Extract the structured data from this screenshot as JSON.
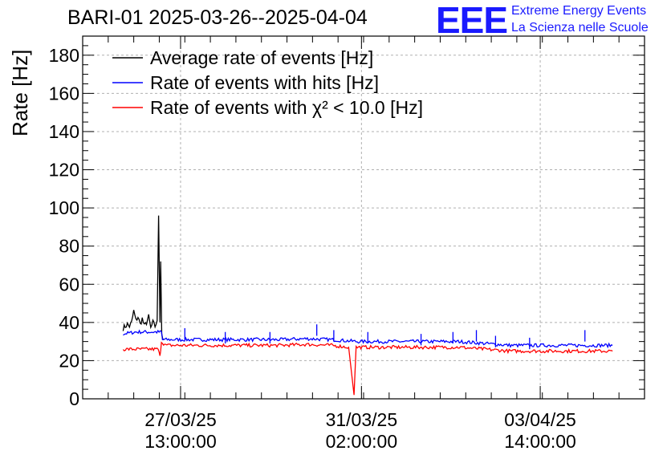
{
  "header": {
    "title": "BARI-01 2025-03-26--2025-04-04",
    "logo_mark": "EEE",
    "logo_line1": "Extreme Energy Events",
    "logo_line2": "La Scienza nelle Scuole"
  },
  "chart_data": {
    "type": "line",
    "title": "BARI-01 2025-03-26--2025-04-04",
    "xlabel": "",
    "ylabel": "Rate [Hz]",
    "ylim": [
      0,
      190
    ],
    "yticks": [
      0,
      20,
      40,
      60,
      80,
      100,
      120,
      140,
      160,
      180
    ],
    "xlim": [
      "2025-03-25 15:00",
      "2025-04-05 15:00"
    ],
    "xticks": [
      {
        "time": "2025-03-27 13:00",
        "label_date": "27/03/25",
        "label_time": "13:00:00"
      },
      {
        "time": "2025-03-31 02:00",
        "label_date": "31/03/25",
        "label_time": "02:00:00"
      },
      {
        "time": "2025-04-03 14:00",
        "label_date": "03/04/25",
        "label_time": "14:00:00"
      }
    ],
    "grid": true,
    "legend_position": "top-left",
    "series": [
      {
        "name": "Average rate of events [Hz]",
        "color": "#000000",
        "points": [
          [
            "2025-03-26 10:00",
            37
          ],
          [
            "2025-03-26 11:00",
            38
          ],
          [
            "2025-03-26 12:00",
            39
          ],
          [
            "2025-03-26 13:00",
            38
          ],
          [
            "2025-03-26 14:00",
            40
          ],
          [
            "2025-03-26 15:00",
            46
          ],
          [
            "2025-03-26 16:00",
            41
          ],
          [
            "2025-03-26 17:00",
            43
          ],
          [
            "2025-03-26 18:00",
            39
          ],
          [
            "2025-03-26 19:00",
            42
          ],
          [
            "2025-03-26 20:00",
            38
          ],
          [
            "2025-03-26 21:00",
            40
          ],
          [
            "2025-03-26 22:00",
            43
          ],
          [
            "2025-03-26 23:00",
            37
          ],
          [
            "2025-03-27 00:00",
            40
          ],
          [
            "2025-03-27 01:00",
            38
          ],
          [
            "2025-03-27 02:00",
            41
          ],
          [
            "2025-03-27 02:40",
            96
          ],
          [
            "2025-03-27 03:20",
            40
          ],
          [
            "2025-03-27 03:40",
            72
          ],
          [
            "2025-03-27 04:10",
            33
          ],
          [
            "2025-03-27 05:00",
            31
          ]
        ]
      },
      {
        "name": "Rate of events with hits [Hz]",
        "color": "#0000ff",
        "points": [
          [
            "2025-03-26 10:00",
            34
          ],
          [
            "2025-03-26 16:00",
            35
          ],
          [
            "2025-03-26 22:00",
            35
          ],
          [
            "2025-03-27 04:00",
            35
          ],
          [
            "2025-03-27 04:30",
            31
          ],
          [
            "2025-03-27 12:00",
            31
          ],
          [
            "2025-03-28 00:00",
            31
          ],
          [
            "2025-03-28 12:00",
            31
          ],
          [
            "2025-03-29 00:00",
            31
          ],
          [
            "2025-03-29 12:00",
            31
          ],
          [
            "2025-03-30 00:00",
            31.5
          ],
          [
            "2025-03-30 12:00",
            31
          ],
          [
            "2025-03-31 00:00",
            30
          ],
          [
            "2025-03-31 12:00",
            30
          ],
          [
            "2025-04-01 00:00",
            30
          ],
          [
            "2025-04-01 12:00",
            30
          ],
          [
            "2025-04-02 00:00",
            30
          ],
          [
            "2025-04-02 12:00",
            29
          ],
          [
            "2025-04-03 00:00",
            28
          ],
          [
            "2025-04-03 12:00",
            28
          ],
          [
            "2025-04-04 00:00",
            28
          ],
          [
            "2025-04-04 12:00",
            28
          ],
          [
            "2025-04-05 00:00",
            28
          ]
        ],
        "spikes": [
          [
            "2025-03-27 15:00",
            37
          ],
          [
            "2025-03-28 10:00",
            35
          ],
          [
            "2025-03-29 07:00",
            35
          ],
          [
            "2025-03-30 05:00",
            39
          ],
          [
            "2025-03-30 13:00",
            36
          ],
          [
            "2025-03-31 05:00",
            35
          ],
          [
            "2025-04-01 06:00",
            34
          ],
          [
            "2025-04-01 21:00",
            35
          ],
          [
            "2025-04-02 08:00",
            36
          ],
          [
            "2025-04-02 17:00",
            33
          ],
          [
            "2025-04-03 09:00",
            32
          ],
          [
            "2025-04-04 11:00",
            36
          ]
        ]
      },
      {
        "name": "Rate of events with χ² < 10.0 [Hz]",
        "color": "#ff0000",
        "points": [
          [
            "2025-03-26 10:00",
            26
          ],
          [
            "2025-03-26 16:00",
            26
          ],
          [
            "2025-03-26 22:00",
            26
          ],
          [
            "2025-03-27 02:30",
            26
          ],
          [
            "2025-03-27 03:20",
            22
          ],
          [
            "2025-03-27 04:00",
            30
          ],
          [
            "2025-03-27 06:00",
            28
          ],
          [
            "2025-03-27 12:00",
            28
          ],
          [
            "2025-03-28 00:00",
            28
          ],
          [
            "2025-03-28 12:00",
            28
          ],
          [
            "2025-03-29 00:00",
            28
          ],
          [
            "2025-03-29 12:00",
            28
          ],
          [
            "2025-03-30 00:00",
            28.5
          ],
          [
            "2025-03-30 12:00",
            28
          ],
          [
            "2025-03-30 20:00",
            27
          ],
          [
            "2025-03-30 22:30",
            2
          ],
          [
            "2025-03-30 23:30",
            27
          ],
          [
            "2025-03-31 12:00",
            27
          ],
          [
            "2025-04-01 00:00",
            27
          ],
          [
            "2025-04-01 12:00",
            27
          ],
          [
            "2025-04-02 00:00",
            27
          ],
          [
            "2025-04-02 12:00",
            26
          ],
          [
            "2025-04-03 00:00",
            25
          ],
          [
            "2025-04-03 12:00",
            25
          ],
          [
            "2025-04-04 00:00",
            25
          ],
          [
            "2025-04-04 12:00",
            25
          ],
          [
            "2025-04-05 00:00",
            25
          ]
        ]
      }
    ]
  }
}
